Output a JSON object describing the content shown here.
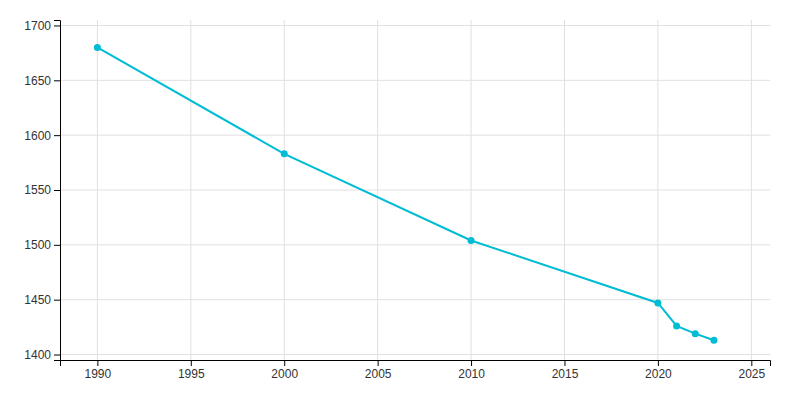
{
  "chart_data": {
    "type": "line",
    "x": [
      1990,
      2000,
      2010,
      2020,
      2021,
      2022,
      2023
    ],
    "values": [
      1680,
      1583,
      1504,
      1447,
      1426,
      1419,
      1413
    ],
    "color": "#00bcd4",
    "marker": "circle",
    "xlim": [
      1988,
      2026
    ],
    "ylim": [
      1395,
      1705
    ],
    "xticks": [
      1990,
      1995,
      2000,
      2005,
      2010,
      2015,
      2020,
      2025
    ],
    "yticks": [
      1400,
      1450,
      1500,
      1550,
      1600,
      1650,
      1700
    ],
    "grid": true
  }
}
